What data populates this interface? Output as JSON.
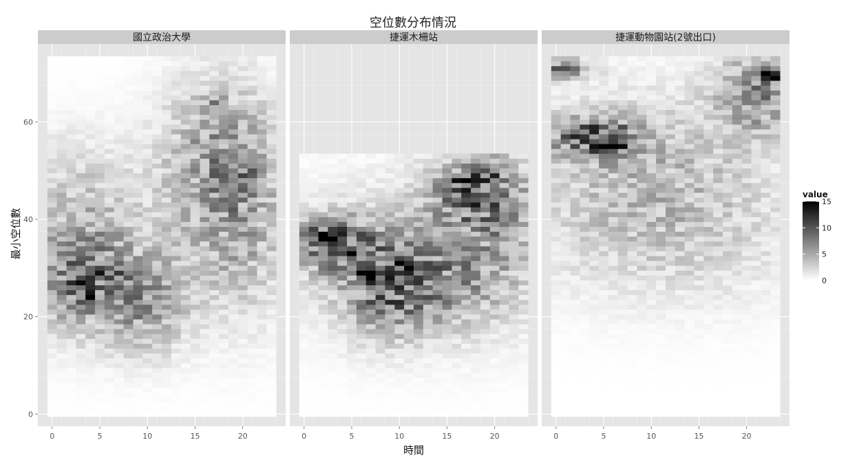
{
  "chart_data": {
    "type": "heatmap",
    "title": "空位數分布情況",
    "xlabel": "時間",
    "ylabel": "最小空位數",
    "x_ticks": [
      0,
      5,
      10,
      15,
      20
    ],
    "y_ticks": [
      0,
      20,
      40,
      60
    ],
    "xlim": [
      -1.5,
      24.5
    ],
    "ylim": [
      -2.5,
      76
    ],
    "legend": {
      "title": "value",
      "ticks": [
        0,
        5,
        10,
        15
      ],
      "range": [
        0,
        15
      ],
      "low_color": "#ffffff",
      "high_color": "#000000"
    },
    "panel_background": "#e5e5e5",
    "strip_background": "#cccccc",
    "grid": true,
    "cell_height": 1,
    "panels": [
      {
        "name": "國立政治大學",
        "x_range": [
          0,
          23
        ],
        "y_max": 73,
        "blobs": [
          {
            "x": 3,
            "y": 28,
            "sx": 3.5,
            "sy": 8,
            "v": 7
          },
          {
            "x": 10,
            "y": 22,
            "sx": 3,
            "sy": 7,
            "v": 5
          },
          {
            "x": 17,
            "y": 55,
            "sx": 4,
            "sy": 11,
            "v": 5
          },
          {
            "x": 20,
            "y": 40,
            "sx": 3.5,
            "sy": 14,
            "v": 4.5
          },
          {
            "x": 8,
            "y": 35,
            "sx": 8,
            "sy": 12,
            "v": 2.5
          },
          {
            "x": 2,
            "y": 48,
            "sx": 4,
            "sy": 8,
            "v": 2
          }
        ],
        "hot": [
          {
            "x": 3,
            "y": 26,
            "v": 10
          },
          {
            "x": 4,
            "y": 24,
            "v": 9
          },
          {
            "x": 11,
            "y": 23,
            "v": 9
          },
          {
            "x": 21,
            "y": 49,
            "v": 9
          },
          {
            "x": 17,
            "y": 64,
            "v": 7
          },
          {
            "x": 6,
            "y": 29,
            "v": 8
          }
        ]
      },
      {
        "name": "捷運木柵站",
        "x_range": [
          0,
          23
        ],
        "y_max": 53,
        "blobs": [
          {
            "x": 3,
            "y": 35,
            "sx": 3,
            "sy": 4,
            "v": 9
          },
          {
            "x": 8,
            "y": 26,
            "sx": 3,
            "sy": 7,
            "v": 6
          },
          {
            "x": 13,
            "y": 27,
            "sx": 4,
            "sy": 7,
            "v": 5
          },
          {
            "x": 18,
            "y": 46,
            "sx": 3.5,
            "sy": 5,
            "v": 7
          },
          {
            "x": 20,
            "y": 37,
            "sx": 4,
            "sy": 12,
            "v": 4
          },
          {
            "x": 10,
            "y": 33,
            "sx": 10,
            "sy": 12,
            "v": 2.5
          }
        ],
        "hot": [
          {
            "x": 2,
            "y": 37,
            "v": 12
          },
          {
            "x": 3,
            "y": 36,
            "v": 11
          },
          {
            "x": 7,
            "y": 29,
            "v": 11
          },
          {
            "x": 11,
            "y": 31,
            "v": 10
          },
          {
            "x": 17,
            "y": 48,
            "v": 12
          },
          {
            "x": 19,
            "y": 49,
            "v": 11
          }
        ]
      },
      {
        "name": "捷運動物園站(2號出口)",
        "x_range": [
          0,
          23
        ],
        "y_max": 73,
        "blobs": [
          {
            "x": 4,
            "y": 57,
            "sx": 3.5,
            "sy": 3,
            "v": 9
          },
          {
            "x": 10,
            "y": 50,
            "sx": 9,
            "sy": 12,
            "v": 4
          },
          {
            "x": 21,
            "y": 66,
            "sx": 3,
            "sy": 6,
            "v": 7
          },
          {
            "x": 1,
            "y": 71,
            "sx": 2,
            "sy": 1.5,
            "v": 7
          },
          {
            "x": 12,
            "y": 35,
            "sx": 10,
            "sy": 10,
            "v": 2
          }
        ],
        "hot": [
          {
            "x": 5,
            "y": 56,
            "v": 13
          },
          {
            "x": 6,
            "y": 55,
            "v": 12
          },
          {
            "x": 23,
            "y": 70,
            "v": 15
          },
          {
            "x": 22,
            "y": 69,
            "v": 13
          },
          {
            "x": 0,
            "y": 70,
            "v": 9
          }
        ]
      }
    ]
  }
}
